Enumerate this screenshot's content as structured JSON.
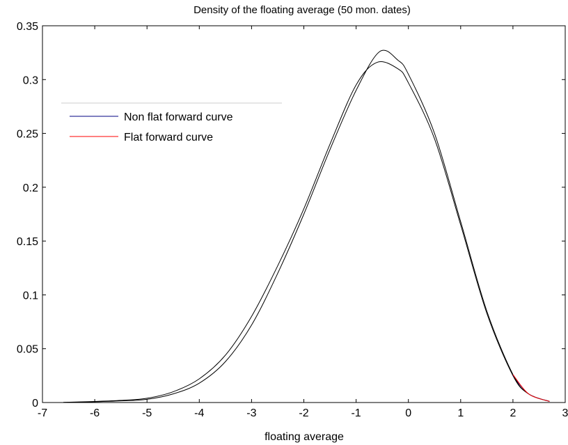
{
  "chart_data": {
    "type": "line",
    "title": "Density of the floating average (50 mon. dates)",
    "xlabel": "floating average",
    "ylabel": "",
    "xlim": [
      -7,
      3
    ],
    "ylim": [
      0,
      0.35
    ],
    "x_ticks": [
      -7,
      -6,
      -5,
      -4,
      -3,
      -2,
      -1,
      0,
      1,
      2,
      3
    ],
    "x_tick_labels": [
      "-7",
      "-6",
      "-5",
      "-4",
      "-3",
      "-2",
      "-1",
      "0",
      "1",
      "2",
      "3"
    ],
    "y_ticks": [
      0,
      0.05,
      0.1,
      0.15,
      0.2,
      0.25,
      0.3,
      0.35
    ],
    "y_tick_labels": [
      "0",
      "0.05",
      "0.1",
      "0.15",
      "0.2",
      "0.25",
      "0.3",
      "0.35"
    ],
    "grid": false,
    "legend_position": "upper-left",
    "series": [
      {
        "name": "Non flat forward curve",
        "color": "#000080",
        "x": [
          -6.6,
          -6.0,
          -5.5,
          -5.0,
          -4.5,
          -4.0,
          -3.5,
          -3.0,
          -2.5,
          -2.0,
          -1.5,
          -1.0,
          -0.6,
          -0.2,
          0.0,
          0.5,
          1.0,
          1.5,
          2.0,
          2.3,
          2.7
        ],
        "y": [
          0.0002,
          0.001,
          0.002,
          0.004,
          0.01,
          0.022,
          0.044,
          0.08,
          0.127,
          0.18,
          0.24,
          0.295,
          0.316,
          0.31,
          0.297,
          0.245,
          0.165,
          0.083,
          0.025,
          0.008,
          0.001
        ]
      },
      {
        "name": "Flat forward curve",
        "color": "#ff0000",
        "x": [
          -6.6,
          -6.0,
          -5.5,
          -5.0,
          -4.5,
          -4.0,
          -3.5,
          -3.0,
          -2.5,
          -2.0,
          -1.5,
          -1.0,
          -0.55,
          -0.2,
          0.0,
          0.5,
          1.0,
          1.5,
          2.0,
          2.3,
          2.7
        ],
        "y": [
          0.0001,
          0.0007,
          0.0015,
          0.003,
          0.008,
          0.018,
          0.038,
          0.072,
          0.12,
          0.175,
          0.235,
          0.29,
          0.326,
          0.318,
          0.305,
          0.25,
          0.168,
          0.085,
          0.026,
          0.008,
          0.001
        ]
      }
    ]
  }
}
